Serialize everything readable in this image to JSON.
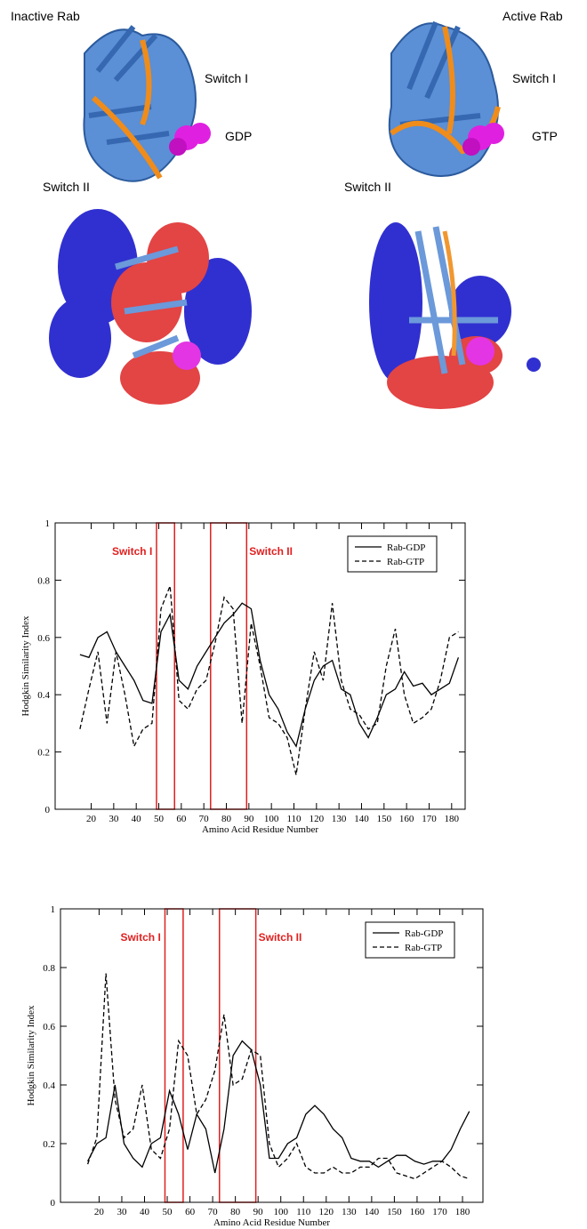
{
  "figure": {
    "panels": [
      {
        "title": "Inactive Rab",
        "labels": [
          "Switch I",
          "GDP",
          "Switch II"
        ]
      },
      {
        "title": "Active Rab",
        "labels": [
          "Switch I",
          "GTP",
          "Switch II"
        ]
      }
    ]
  },
  "chart_data": [
    {
      "type": "line",
      "x_label": "Amino Acid Residue Number",
      "y_label": "Hodgkin Similarity Index",
      "x": [
        15,
        19,
        23,
        27,
        31,
        35,
        39,
        43,
        47,
        51,
        55,
        59,
        63,
        67,
        71,
        75,
        79,
        83,
        87,
        91,
        95,
        99,
        103,
        107,
        111,
        115,
        119,
        123,
        127,
        131,
        135,
        139,
        143,
        147,
        151,
        155,
        159,
        163,
        167,
        171,
        175,
        179,
        183
      ],
      "series": [
        {
          "name": "Rab-GDP",
          "color": "#000000",
          "line_style": "solid",
          "values": [
            0.54,
            0.53,
            0.6,
            0.62,
            0.55,
            0.5,
            0.45,
            0.38,
            0.37,
            0.62,
            0.68,
            0.45,
            0.42,
            0.5,
            0.55,
            0.6,
            0.65,
            0.68,
            0.72,
            0.7,
            0.52,
            0.4,
            0.35,
            0.27,
            0.22,
            0.35,
            0.45,
            0.5,
            0.52,
            0.42,
            0.4,
            0.3,
            0.25,
            0.32,
            0.4,
            0.42,
            0.48,
            0.43,
            0.44,
            0.4,
            0.42,
            0.44,
            0.53
          ]
        },
        {
          "name": "Rab-GTP",
          "color": "#000000",
          "line_style": "dashed",
          "values": [
            0.28,
            0.42,
            0.55,
            0.3,
            0.55,
            0.4,
            0.22,
            0.28,
            0.3,
            0.7,
            0.78,
            0.38,
            0.35,
            0.42,
            0.45,
            0.58,
            0.74,
            0.7,
            0.3,
            0.65,
            0.5,
            0.32,
            0.3,
            0.25,
            0.12,
            0.35,
            0.55,
            0.45,
            0.72,
            0.45,
            0.35,
            0.33,
            0.28,
            0.3,
            0.5,
            0.63,
            0.4,
            0.3,
            0.32,
            0.35,
            0.45,
            0.6,
            0.62
          ]
        }
      ],
      "regions": [
        {
          "label": "Switch I",
          "range": [
            49,
            57
          ],
          "color": "#e02020"
        },
        {
          "label": "Switch II",
          "range": [
            73,
            89
          ],
          "color": "#e02020"
        }
      ],
      "xlim": [
        4,
        186
      ],
      "ylim": [
        0,
        1
      ],
      "xticks": [
        20,
        30,
        40,
        50,
        60,
        70,
        80,
        90,
        100,
        110,
        120,
        130,
        140,
        150,
        160,
        170,
        180
      ],
      "yticks": [
        0,
        0.2,
        0.4,
        0.6,
        0.8,
        1
      ],
      "legend": "upper right"
    },
    {
      "type": "line",
      "x_label": "Amino Acid Residue Number",
      "y_label": "Hodgkin Similarity Index",
      "x": [
        15,
        19,
        23,
        27,
        31,
        35,
        39,
        43,
        47,
        51,
        55,
        59,
        63,
        67,
        71,
        75,
        79,
        83,
        87,
        91,
        95,
        99,
        103,
        107,
        111,
        115,
        119,
        123,
        127,
        131,
        135,
        139,
        143,
        147,
        151,
        155,
        159,
        163,
        167,
        171,
        175,
        179,
        183
      ],
      "series": [
        {
          "name": "Rab-GDP",
          "color": "#000000",
          "line_style": "solid",
          "values": [
            0.14,
            0.2,
            0.22,
            0.4,
            0.2,
            0.15,
            0.12,
            0.2,
            0.22,
            0.38,
            0.3,
            0.18,
            0.3,
            0.25,
            0.1,
            0.25,
            0.5,
            0.55,
            0.52,
            0.4,
            0.15,
            0.15,
            0.2,
            0.22,
            0.3,
            0.33,
            0.3,
            0.25,
            0.22,
            0.15,
            0.14,
            0.14,
            0.12,
            0.14,
            0.16,
            0.16,
            0.14,
            0.13,
            0.14,
            0.14,
            0.18,
            0.25,
            0.31
          ]
        },
        {
          "name": "Rab-GTP",
          "color": "#000000",
          "line_style": "dashed",
          "values": [
            0.13,
            0.22,
            0.78,
            0.35,
            0.22,
            0.25,
            0.4,
            0.18,
            0.15,
            0.25,
            0.55,
            0.5,
            0.3,
            0.35,
            0.45,
            0.64,
            0.4,
            0.42,
            0.52,
            0.5,
            0.2,
            0.12,
            0.15,
            0.2,
            0.12,
            0.1,
            0.1,
            0.12,
            0.1,
            0.1,
            0.12,
            0.12,
            0.15,
            0.15,
            0.1,
            0.09,
            0.08,
            0.1,
            0.12,
            0.14,
            0.12,
            0.09,
            0.08
          ]
        }
      ],
      "regions": [
        {
          "label": "Switch I",
          "range": [
            49,
            57
          ],
          "color": "#e02020"
        },
        {
          "label": "Switch II",
          "range": [
            73,
            89
          ],
          "color": "#e02020"
        }
      ],
      "xlim": [
        3,
        189
      ],
      "ylim": [
        0,
        1
      ],
      "xticks": [
        20,
        30,
        40,
        50,
        60,
        70,
        80,
        90,
        100,
        110,
        120,
        130,
        140,
        150,
        160,
        170,
        180
      ],
      "yticks": [
        0,
        0.2,
        0.4,
        0.6,
        0.8,
        1
      ],
      "legend": "upper right"
    }
  ]
}
